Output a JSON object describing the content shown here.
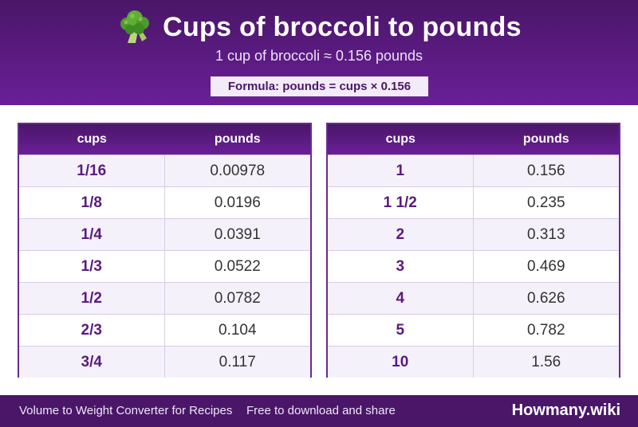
{
  "header": {
    "icon": "broccoli-icon",
    "title": "Cups of broccoli to pounds",
    "subtitle": "1 cup of broccoli ≈ 0.156 pounds",
    "formula": "Formula: pounds = cups × 0.156"
  },
  "tables": [
    {
      "col_cups": "cups",
      "col_pounds": "pounds",
      "rows": [
        {
          "cups": "1/16",
          "pounds": "0.00978"
        },
        {
          "cups": "1/8",
          "pounds": "0.0196"
        },
        {
          "cups": "1/4",
          "pounds": "0.0391"
        },
        {
          "cups": "1/3",
          "pounds": "0.0522"
        },
        {
          "cups": "1/2",
          "pounds": "0.0782"
        },
        {
          "cups": "2/3",
          "pounds": "0.104"
        },
        {
          "cups": "3/4",
          "pounds": "0.117"
        }
      ]
    },
    {
      "col_cups": "cups",
      "col_pounds": "pounds",
      "rows": [
        {
          "cups": "1",
          "pounds": "0.156"
        },
        {
          "cups": "1 1/2",
          "pounds": "0.235"
        },
        {
          "cups": "2",
          "pounds": "0.313"
        },
        {
          "cups": "3",
          "pounds": "0.469"
        },
        {
          "cups": "4",
          "pounds": "0.626"
        },
        {
          "cups": "5",
          "pounds": "0.782"
        },
        {
          "cups": "10",
          "pounds": "1.56"
        }
      ]
    }
  ],
  "footer": {
    "left": "Volume to Weight Converter for Recipes",
    "middle": "Free to download and share",
    "brand": "Howmany.wiki"
  },
  "colors": {
    "primary": "#4a1668",
    "accent": "#6a1f97"
  }
}
